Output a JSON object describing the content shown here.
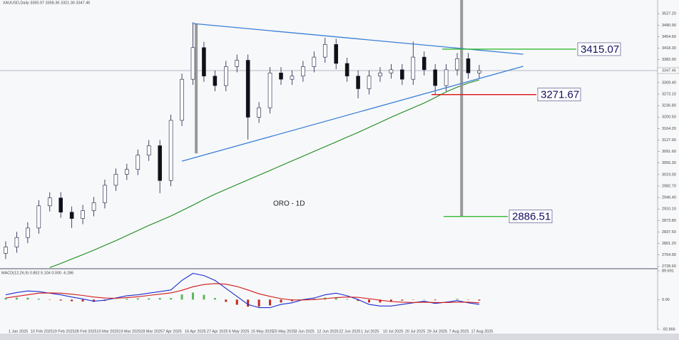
{
  "chart_data": {
    "type": "candlestick",
    "symbol_info": "XAUUSD,Daily  3350.97 3358.36 3321.36 3347.46",
    "annotation": "ORO - 1D",
    "open": [
      2770,
      2790,
      2820,
      2850,
      2920,
      2945,
      2900,
      2880,
      2905,
      2930,
      2985,
      3020,
      3035,
      3080,
      3110,
      3000,
      3190,
      3320,
      3420,
      3330,
      3300,
      3360,
      3380,
      3200,
      3230,
      3340,
      3320,
      3330,
      3360,
      3390,
      3430,
      3370,
      3330,
      3290,
      3330,
      3340,
      3350,
      3320,
      3390,
      3350,
      3300,
      3350,
      3385,
      3340
    ],
    "high": [
      2808,
      2838,
      2868,
      2938,
      2963,
      2963,
      2918,
      2923,
      2948,
      3003,
      3038,
      3053,
      3098,
      3128,
      3128,
      3208,
      3338,
      3500,
      3438,
      3348,
      3378,
      3398,
      3398,
      3248,
      3358,
      3358,
      3348,
      3378,
      3408,
      3451,
      3448,
      3388,
      3348,
      3348,
      3358,
      3368,
      3368,
      3439,
      3408,
      3368,
      3368,
      3403,
      3403,
      3365
    ],
    "low": [
      2752,
      2772,
      2802,
      2832,
      2902,
      2882,
      2850,
      2862,
      2887,
      2912,
      2967,
      3002,
      3017,
      3062,
      2960,
      2982,
      3172,
      3302,
      3312,
      3282,
      3282,
      3342,
      3130,
      3182,
      3212,
      3302,
      3302,
      3312,
      3342,
      3372,
      3352,
      3312,
      3260,
      3272,
      3312,
      3322,
      3302,
      3302,
      3332,
      3270,
      3282,
      3332,
      3322,
      3322
    ],
    "close": [
      2790,
      2820,
      2850,
      2920,
      2945,
      2900,
      2880,
      2905,
      2930,
      2985,
      3020,
      3035,
      3080,
      3110,
      3000,
      3190,
      3320,
      3420,
      3330,
      3300,
      3360,
      3380,
      3200,
      3230,
      3340,
      3320,
      3330,
      3360,
      3390,
      3430,
      3370,
      3330,
      3290,
      3330,
      3340,
      3350,
      3320,
      3390,
      3350,
      3300,
      3350,
      3385,
      3340,
      3347
    ],
    "moving_average": {
      "color": "#1a8a1a",
      "values": [
        null,
        null,
        null,
        null,
        2725,
        2738,
        2752,
        2766,
        2780,
        2795,
        2810,
        2826,
        2842,
        2858,
        2873,
        2888,
        2905,
        2922,
        2940,
        2957,
        2972,
        2987,
        3002,
        3017,
        3032,
        3047,
        3062,
        3077,
        3092,
        3107,
        3122,
        3137,
        3152,
        3168,
        3184,
        3200,
        3215,
        3230,
        3245,
        3262,
        3280,
        3295,
        3308,
        3318
      ]
    },
    "ylim": [
      2723.6,
      3570.4
    ],
    "yticks": [
      {
        "value": 2728.6,
        "label": "2728.60"
      },
      {
        "value": 2764.9,
        "label": "2764.90"
      },
      {
        "value": 2801.2,
        "label": "2801.20"
      },
      {
        "value": 2837.5,
        "label": "2837.50"
      },
      {
        "value": 2873.8,
        "label": "2873.80"
      },
      {
        "value": 2910.1,
        "label": "2910.10"
      },
      {
        "value": 2946.4,
        "label": "2946.40"
      },
      {
        "value": 2982.7,
        "label": "2982.70"
      },
      {
        "value": 3019,
        "label": "3019.00"
      },
      {
        "value": 3055.3,
        "label": "3055.30"
      },
      {
        "value": 3091.6,
        "label": "3091.60"
      },
      {
        "value": 3127.9,
        "label": "3127.90"
      },
      {
        "value": 3164.2,
        "label": "3164.20"
      },
      {
        "value": 3200.5,
        "label": "3200.50"
      },
      {
        "value": 3236.8,
        "label": "3236.80"
      },
      {
        "value": 3273.1,
        "label": "3273.10"
      },
      {
        "value": 3309.4,
        "label": "3309.40"
      },
      {
        "value": 3382,
        "label": "3382.00"
      },
      {
        "value": 3418.3,
        "label": "3418.30"
      },
      {
        "value": 3454.6,
        "label": "3454.60"
      },
      {
        "value": 3490.9,
        "label": "3490.90"
      },
      {
        "value": 3527.2,
        "label": "3527.20"
      }
    ],
    "last_price": 3347.46,
    "x_labels": [
      "1 Jan 2025",
      "10 Feb 2025",
      "19 Feb 2025",
      "28 Feb 2025",
      "10 Mar 2025",
      "19 Mar 2025",
      "28 Mar 2025",
      "7 Apr 2025",
      "16 Apr 2025",
      "27 Apr 2025",
      "6 May 2025",
      "15 May 2025",
      "25 May 2025",
      "3 Jun 2025",
      "12 Jun 2025",
      "22 Jun 2025",
      "1 Jul 2025",
      "10 Jul 2025",
      "20 Jul 2025",
      "29 Jul 2025",
      "7 Aug 2025",
      "17 Aug 2025"
    ],
    "trendlines": [
      {
        "color": "#3a7fd5",
        "points": [
          [
            17,
            3496
          ],
          [
            47,
            3399
          ]
        ]
      },
      {
        "color": "#3a7fd5",
        "points": [
          [
            16,
            3061
          ],
          [
            47,
            3361
          ]
        ]
      }
    ],
    "levels": [
      {
        "value": 3415.07,
        "color": "#33bb33"
      },
      {
        "value": 3271.67,
        "color": "#dd1111"
      },
      {
        "value": 2886.51,
        "color": "#33bb33"
      }
    ],
    "measure_bars": [
      {
        "x": 17.3,
        "from": 3496,
        "to": 3086
      },
      {
        "x": 41.4,
        "from": 3570.4,
        "to": 2886.51
      }
    ],
    "macd": {
      "label": "MACD(12,26,9) 0.852 5.104 0.000 -6.286",
      "ylim": [
        -92.666,
        89.691
      ],
      "yticks": [
        89.691,
        {
          "value": 0,
          "label": "0.00"
        },
        -92.666
      ],
      "histogram": [
        5,
        6,
        6,
        3,
        -1,
        -3,
        -5,
        -6,
        -7,
        -4,
        1,
        3,
        4,
        4,
        5,
        5,
        16,
        22,
        15,
        5,
        -7,
        -16,
        -22,
        -22,
        -18,
        -9,
        -5,
        1,
        3,
        6,
        7,
        2,
        -4,
        -9,
        -9,
        -7,
        -3,
        -1,
        1,
        -2,
        0,
        3,
        -1,
        -3
      ],
      "series": [
        {
          "color": "#1a2fd0",
          "values": [
            15,
            22,
            27,
            25,
            20,
            15,
            8,
            2,
            -5,
            -2,
            5,
            12,
            15,
            20,
            25,
            30,
            60,
            82,
            75,
            60,
            35,
            10,
            -15,
            -25,
            -25,
            -15,
            -10,
            0,
            5,
            15,
            20,
            12,
            0,
            -15,
            -20,
            -20,
            -15,
            -10,
            -5,
            -12,
            -8,
            -3,
            -10,
            -15
          ]
        },
        {
          "color": "#d01a1a",
          "values": [
            5,
            10,
            15,
            20,
            21,
            20,
            17,
            13,
            8,
            5,
            4,
            6,
            9,
            13,
            17,
            21,
            29,
            40,
            47,
            50,
            48,
            41,
            30,
            18,
            10,
            3,
            -1,
            -1,
            0,
            3,
            6,
            8,
            7,
            3,
            -2,
            -6,
            -8,
            -9,
            -8,
            -9,
            -9,
            -8,
            -8,
            -10
          ]
        }
      ]
    }
  }
}
